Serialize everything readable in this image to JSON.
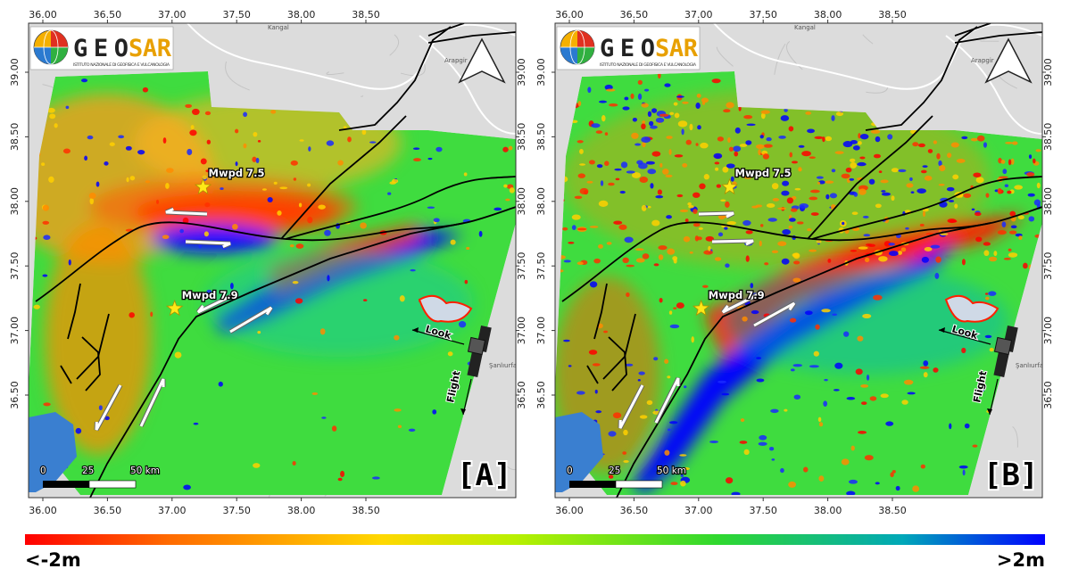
{
  "axis": {
    "x_ticks": [
      "36.00",
      "36.50",
      "37.00",
      "37.50",
      "38.00",
      "38.50"
    ],
    "y_ticks": [
      "39.00",
      "38.50",
      "38.00",
      "37.50",
      "37.00",
      "36.50"
    ]
  },
  "logo": {
    "name": "GEOSAR",
    "part1": "GEO",
    "part2": "SAR",
    "subtitle": "ISTITUTO NAZIONALE DI GEOFISICA E VULCANOLOGIA"
  },
  "basemap_labels": [
    "Kangal",
    "Arapgir",
    "Şanlıurfa"
  ],
  "epicenters": [
    {
      "label": "Mwpd 7.5",
      "lon": 37.24,
      "lat": 38.11
    },
    {
      "label": "Mwpd 7.9",
      "lon": 37.02,
      "lat": 37.17
    }
  ],
  "scalebar": {
    "zero": "0",
    "mid": "25",
    "end": "50 km"
  },
  "satellite": {
    "look": "Look",
    "flight": "Flight"
  },
  "panels": [
    {
      "id": "A",
      "label": "[A]"
    },
    {
      "id": "B",
      "label": "[B]"
    }
  ],
  "colorbar": {
    "min_label": "<-2m",
    "max_label": ">2m",
    "colors": [
      "#ff0000",
      "#ffd800",
      "#2fd82f",
      "#0000ff"
    ]
  },
  "icons": [
    "north-arrow-icon",
    "satellite-icon",
    "star-icon",
    "globe-logo-icon"
  ]
}
